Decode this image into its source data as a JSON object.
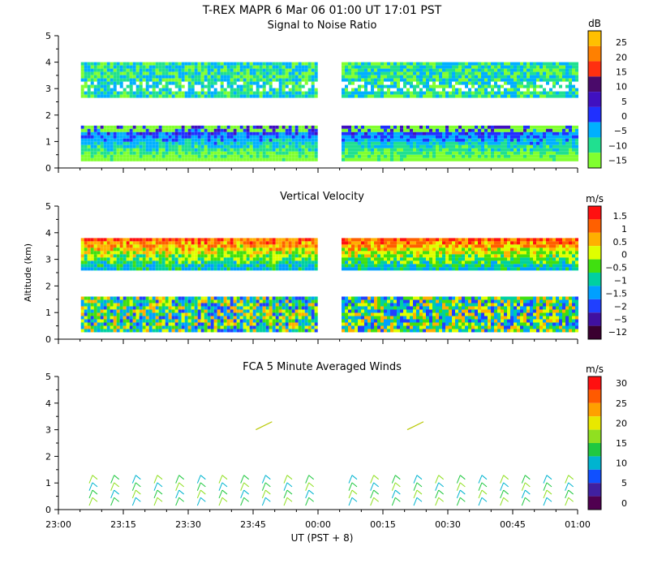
{
  "header": {
    "title": "T-REX   MAPR   6 Mar 06   01:00 UT   17:01   PST"
  },
  "xaxis": {
    "label": "UT  (PST + 8)",
    "ticks": [
      "23:00",
      "23:15",
      "23:30",
      "23:45",
      "00:00",
      "00:15",
      "00:30",
      "00:45",
      "01:00"
    ]
  },
  "chart_data": [
    {
      "type": "heatmap",
      "title": "Signal to Noise Ratio",
      "ylabel": "",
      "ylim": [
        0,
        5
      ],
      "yticks": [
        "0",
        "1",
        "2",
        "3",
        "4",
        "5"
      ],
      "colorbar": {
        "unit": "dB",
        "labels": [
          "25",
          "20",
          "15",
          "10",
          "5",
          "0",
          "−5",
          "−10",
          "−15"
        ],
        "colors": [
          "#ffc000",
          "#ff8000",
          "#ff3010",
          "#4a0a6a",
          "#4010c0",
          "#2030ff",
          "#00b0ff",
          "#20e090",
          "#80ff30"
        ]
      },
      "bands": [
        {
          "from": 0.35,
          "to": 1.6,
          "level": "low"
        },
        {
          "from": 2.7,
          "to": 4.0,
          "level": "upper"
        }
      ]
    },
    {
      "type": "heatmap",
      "title": "Vertical Velocity",
      "ylabel": "Altitude (km)",
      "ylim": [
        0,
        5
      ],
      "yticks": [
        "0",
        "1",
        "2",
        "3",
        "4",
        "5"
      ],
      "colorbar": {
        "unit": "m/s",
        "labels": [
          "1.5",
          "1",
          "0.5",
          "0",
          "−0.5",
          "−1",
          "−1.5",
          "−2",
          "−5",
          "−12"
        ],
        "colors": [
          "#ff1010",
          "#ff6000",
          "#ffb000",
          "#e0ff00",
          "#40e010",
          "#00d0a0",
          "#00a0ff",
          "#2040ff",
          "#4010a0",
          "#3a0030"
        ]
      },
      "bands": [
        {
          "from": 0.35,
          "to": 1.6,
          "level": "low"
        },
        {
          "from": 2.6,
          "to": 3.8,
          "level": "upper"
        }
      ]
    },
    {
      "type": "scatter",
      "title": "FCA 5 Minute Averaged Winds",
      "ylabel": "",
      "ylim": [
        0,
        5
      ],
      "yticks": [
        "0",
        "1",
        "2",
        "3",
        "4",
        "5"
      ],
      "colorbar": {
        "unit": "m/s",
        "labels": [
          "30",
          "25",
          "20",
          "15",
          "10",
          "5",
          "0"
        ],
        "colors": [
          "#ff1010",
          "#ff5a00",
          "#ffa000",
          "#e8e800",
          "#90e020",
          "#20c840",
          "#00b4d0",
          "#1050ff",
          "#4020a0",
          "#500050"
        ]
      },
      "barb_times_min": [
        7.5,
        12.5,
        17.5,
        22.5,
        27.5,
        32.5,
        37.5,
        42.5,
        47.5,
        52.5,
        57.5,
        67.5,
        72.5,
        77.5,
        82.5,
        87.5,
        92.5,
        97.5,
        102.5,
        107.5,
        112.5,
        117.5
      ],
      "upper_barbs_min": [
        47.5,
        82.5
      ]
    }
  ]
}
